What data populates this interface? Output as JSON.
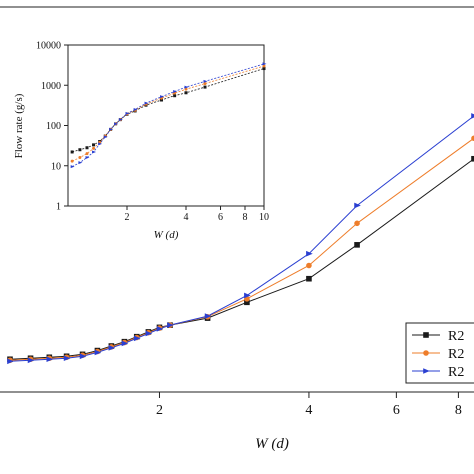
{
  "chart_data": [
    {
      "type": "line",
      "xlabel": "W (d)",
      "x_scale": "log",
      "x_ticks": [
        "2",
        "4",
        "6",
        "8"
      ],
      "y_ticks": [],
      "xlim": [
        1.0,
        8.6
      ],
      "ylim": [
        8,
        110
      ],
      "y_scale": "log",
      "grid": false,
      "legend": {
        "placement": "lower-right",
        "entries": [
          "R2",
          "R2",
          "R2"
        ]
      },
      "series": [
        {
          "name": "R2",
          "color": "#1a1a1a",
          "marker": "square",
          "x": [
            1.0,
            1.1,
            1.2,
            1.3,
            1.4,
            1.5,
            1.6,
            1.7,
            1.8,
            1.9,
            2.0,
            2.1,
            2.5,
            3.0,
            4.0,
            5.0,
            8.6
          ],
          "y": [
            10.5,
            10.6,
            10.7,
            10.8,
            11.0,
            11.4,
            11.9,
            12.4,
            13.0,
            13.6,
            14.2,
            14.5,
            15.5,
            18.0,
            22.5,
            31.0,
            70.0
          ]
        },
        {
          "name": "R2",
          "color": "#ee7d2a",
          "marker": "circle",
          "x": [
            1.0,
            1.1,
            1.2,
            1.3,
            1.4,
            1.5,
            1.6,
            1.7,
            1.8,
            1.9,
            2.0,
            2.1,
            2.5,
            3.0,
            4.0,
            5.0,
            8.6
          ],
          "y": [
            10.4,
            10.5,
            10.6,
            10.7,
            10.9,
            11.3,
            11.8,
            12.3,
            12.9,
            13.5,
            14.1,
            14.5,
            15.7,
            18.6,
            25.5,
            38.0,
            85.0
          ]
        },
        {
          "name": "R2",
          "color": "#2a3fd1",
          "marker": "triangle-right",
          "x": [
            1.0,
            1.1,
            1.2,
            1.3,
            1.4,
            1.5,
            1.6,
            1.7,
            1.8,
            1.9,
            2.0,
            2.1,
            2.5,
            3.0,
            4.0,
            5.0,
            8.6
          ],
          "y": [
            10.3,
            10.4,
            10.5,
            10.6,
            10.8,
            11.2,
            11.7,
            12.2,
            12.8,
            13.4,
            14.0,
            14.5,
            15.8,
            19.2,
            28.5,
            45.0,
            105.0
          ]
        }
      ]
    },
    {
      "type": "line",
      "ylabel": "Flow rate (g/s)",
      "xlabel": "W (d)",
      "x_scale": "log",
      "y_scale": "log",
      "x_ticks": [
        "2",
        "4",
        "6",
        "8",
        "10"
      ],
      "y_ticks": [
        "1",
        "10",
        "100",
        "1000",
        "10000"
      ],
      "xlim": [
        1.0,
        10.0
      ],
      "ylim": [
        1,
        10000
      ],
      "grid": false,
      "series": [
        {
          "color": "#1a1a1a",
          "marker": "square",
          "x": [
            1.05,
            1.15,
            1.25,
            1.35,
            1.45,
            1.55,
            1.65,
            1.75,
            1.85,
            2.0,
            2.2,
            2.5,
            3.0,
            3.5,
            4.0,
            5.0,
            10.0
          ],
          "y": [
            22,
            25,
            28,
            33,
            40,
            55,
            80,
            110,
            140,
            190,
            230,
            320,
            430,
            550,
            650,
            900,
            2600
          ]
        },
        {
          "color": "#ee7d2a",
          "marker": "circle",
          "x": [
            1.05,
            1.15,
            1.25,
            1.35,
            1.45,
            1.55,
            1.65,
            1.75,
            1.85,
            2.0,
            2.2,
            2.5,
            3.0,
            3.5,
            4.0,
            5.0,
            10.0
          ],
          "y": [
            13,
            16,
            20,
            27,
            38,
            55,
            80,
            110,
            140,
            195,
            240,
            340,
            480,
            640,
            800,
            1100,
            3000
          ]
        },
        {
          "color": "#2a3fd1",
          "marker": "triangle-right",
          "x": [
            1.05,
            1.15,
            1.25,
            1.35,
            1.45,
            1.55,
            1.65,
            1.75,
            1.85,
            2.0,
            2.2,
            2.5,
            3.0,
            3.5,
            4.0,
            5.0,
            10.0
          ],
          "y": [
            9.5,
            12,
            16,
            22,
            35,
            52,
            80,
            110,
            140,
            200,
            250,
            360,
            520,
            700,
            900,
            1250,
            3400
          ]
        }
      ]
    }
  ]
}
